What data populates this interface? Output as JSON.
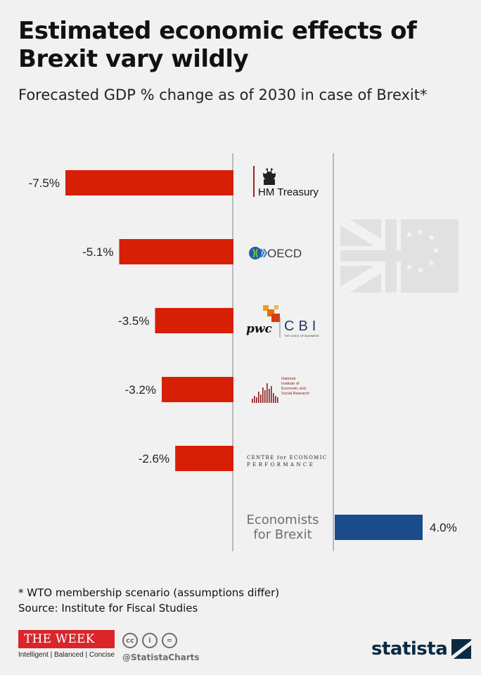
{
  "header": {
    "title": "Estimated economic effects of Brexit vary wildly",
    "subtitle": "Forecasted GDP % change as of 2030 in case of Brexit*"
  },
  "chart_data": {
    "type": "bar",
    "orientation": "horizontal",
    "categories": [
      "HM Treasury",
      "OECD",
      "pwc CBI",
      "National Institute of Economic and Social Research",
      "Centre for Economic Performance",
      "Economists for Brexit"
    ],
    "values": [
      -7.5,
      -5.1,
      -3.5,
      -3.2,
      -2.6,
      4.0
    ],
    "value_labels": [
      "-7.5%",
      "-5.1%",
      "-3.5%",
      "-3.2%",
      "-2.6%",
      "4.0%"
    ],
    "xlim": [
      -7.5,
      4.0
    ],
    "colors": {
      "negative": "#d71f05",
      "positive": "#1a4b8a"
    },
    "grid": false,
    "legend": "none"
  },
  "logos": {
    "hm_treasury": "HM Treasury",
    "oecd": "OECD",
    "pwc": "pwc",
    "cbi": "CBI",
    "cbi_tagline": "THE VOICE OF BUSINESS",
    "niesr": [
      "National",
      "Institute of",
      "Economic and",
      "Social Research"
    ],
    "cep_line1": "CENTRE for ECONOMIC",
    "cep_line2": "PERFORMANCE",
    "efb": [
      "Economists",
      "for Brexit"
    ]
  },
  "footer": {
    "note": "* WTO membership scenario (assumptions differ)",
    "source": "Source: Institute for Fiscal Studies",
    "week_name": "THE WEEK",
    "week_tagline": "Intelligent | Balanced | Concise",
    "handle": "@StatistaCharts",
    "brand": "statista",
    "cc_icons": [
      "cc-icon",
      "by-icon",
      "nd-icon"
    ]
  }
}
